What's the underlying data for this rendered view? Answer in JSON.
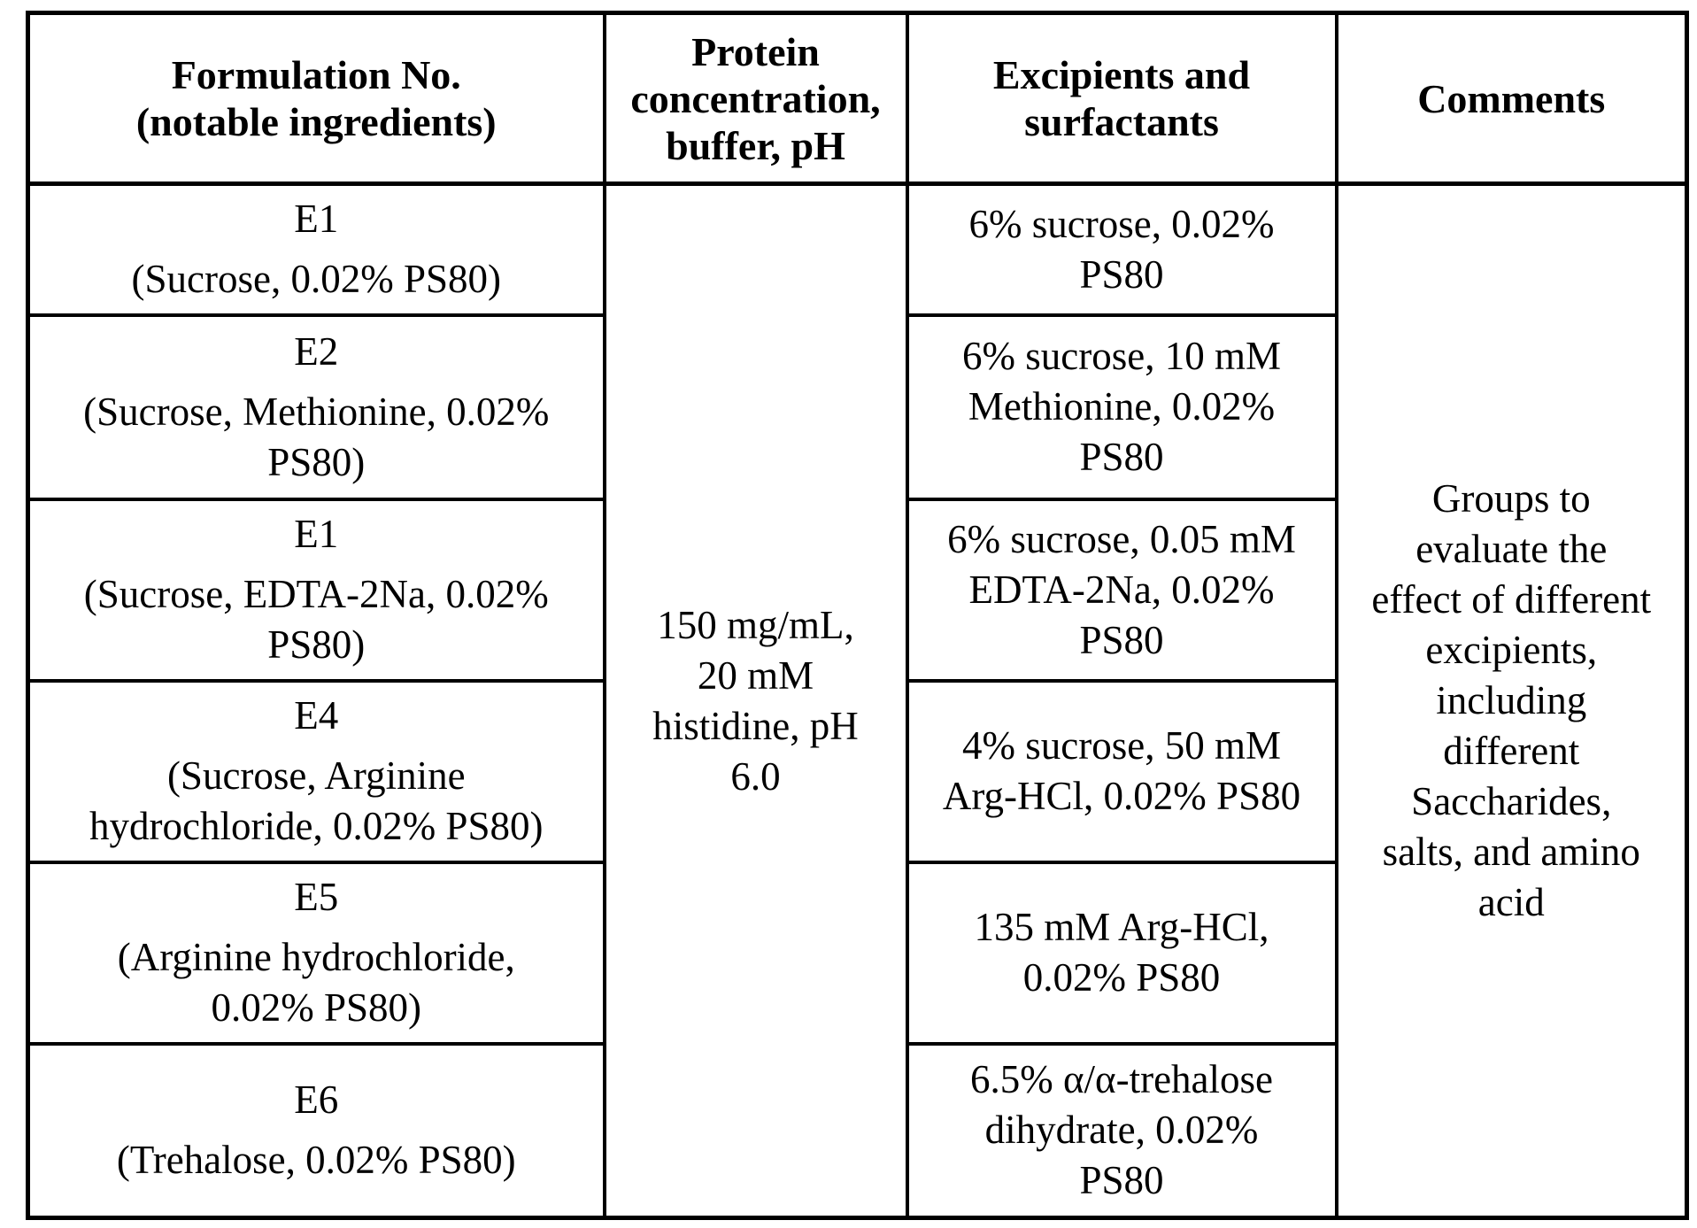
{
  "page": {
    "background_color": "#ffffff",
    "text_color": "#000000",
    "border_color": "#000000"
  },
  "table": {
    "headers": {
      "formulation": {
        "lines": [
          "Formulation No.",
          "(notable ingredients)"
        ]
      },
      "protein": {
        "lines": [
          "Protein",
          "concentration,",
          "buffer, pH"
        ]
      },
      "excipients": {
        "lines": [
          "Excipients and",
          "surfactants"
        ]
      },
      "comments": {
        "lines": [
          "Comments"
        ]
      }
    },
    "protein_cell": {
      "lines": [
        "150 mg/mL,",
        "20 mM",
        "histidine, pH",
        "6.0"
      ]
    },
    "comments_cell": {
      "lines": [
        "Groups to",
        "evaluate the",
        "effect of different",
        "excipients,",
        "including",
        "different",
        "Saccharides,",
        "salts, and amino",
        "acid"
      ]
    },
    "rows": [
      {
        "formulation_no": "E1",
        "ingredient_lines": [
          "(Sucrose, 0.02% PS80)"
        ],
        "excipient_lines": [
          "6% sucrose, 0.02%",
          "PS80"
        ]
      },
      {
        "formulation_no": "E2",
        "ingredient_lines": [
          "(Sucrose, Methionine, 0.02%",
          "PS80)"
        ],
        "excipient_lines": [
          "6% sucrose, 10 mM",
          "Methionine, 0.02%",
          "PS80"
        ]
      },
      {
        "formulation_no": "E1",
        "ingredient_lines": [
          "(Sucrose, EDTA-2Na, 0.02%",
          "PS80)"
        ],
        "excipient_lines": [
          "6% sucrose, 0.05 mM",
          "EDTA-2Na, 0.02%",
          "PS80"
        ]
      },
      {
        "formulation_no": "E4",
        "ingredient_lines": [
          "(Sucrose, Arginine",
          "hydrochloride, 0.02% PS80)"
        ],
        "excipient_lines": [
          "4% sucrose, 50 mM",
          "Arg-HCl, 0.02% PS80"
        ]
      },
      {
        "formulation_no": "E5",
        "ingredient_lines": [
          "(Arginine hydrochloride,",
          "0.02% PS80)"
        ],
        "excipient_lines": [
          "135 mM Arg-HCl,",
          "0.02% PS80"
        ]
      },
      {
        "formulation_no": "E6",
        "ingredient_lines": [
          "(Trehalose, 0.02% PS80)"
        ],
        "excipient_lines": [
          "6.5% α/α-trehalose",
          "dihydrate, 0.02%",
          "PS80"
        ]
      }
    ]
  }
}
